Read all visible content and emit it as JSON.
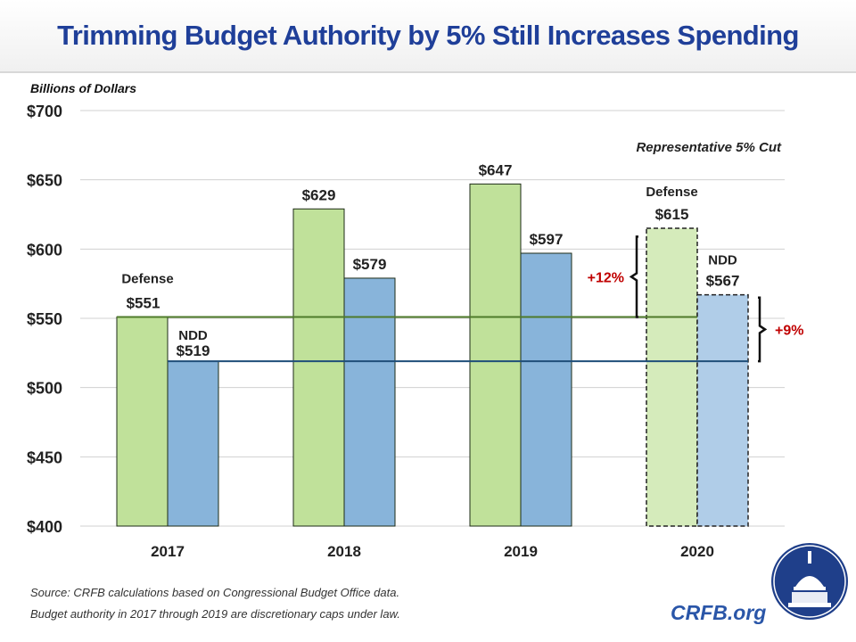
{
  "header": {
    "title": "Trimming Budget Authority by 5% Still Increases Spending"
  },
  "chart_data": {
    "type": "bar",
    "title": "Trimming Budget Authority by 5% Still Increases Spending",
    "ylabel": "Billions of Dollars",
    "xlabel": "",
    "ylim": [
      400,
      700
    ],
    "yticks": [
      400,
      450,
      500,
      550,
      600,
      650,
      700
    ],
    "ytick_labels": [
      "$400",
      "$450",
      "$500",
      "$550",
      "$600",
      "$650",
      "$700"
    ],
    "grid": true,
    "categories": [
      "2017",
      "2018",
      "2019",
      "2020"
    ],
    "series": [
      {
        "name": "Defense",
        "color": "#c0e19a",
        "color_projected": "#d5ebbb",
        "values": [
          551,
          629,
          647,
          615
        ],
        "labels": [
          "$551",
          "$629",
          "$647",
          "$615"
        ]
      },
      {
        "name": "NDD",
        "color": "#88b4da",
        "color_projected": "#b0cde8",
        "values": [
          519,
          579,
          597,
          567
        ],
        "labels": [
          "$519",
          "$579",
          "$597",
          "$567"
        ]
      }
    ],
    "projected_category": "2020",
    "reference_lines": [
      {
        "name": "Defense 2017 level",
        "value": 551,
        "color": "#4e7a2a"
      },
      {
        "name": "NDD 2017 level",
        "value": 519,
        "color": "#1f4e79"
      }
    ],
    "annotations": {
      "projection_note": "Representative 5% Cut",
      "defense_series_label_2017": "Defense",
      "ndd_series_label_2017": "NDD",
      "defense_series_label_2020": "Defense",
      "ndd_series_label_2020": "NDD",
      "defense_increase": "+12%",
      "ndd_increase": "+9%"
    },
    "increase_color": "#c00000"
  },
  "footer": {
    "source": "Source: CRFB calculations based on Congressional Budget Office data.",
    "note": "Budget authority in 2017 through 2019 are discretionary caps under law.",
    "brand": "CRFB.org"
  }
}
